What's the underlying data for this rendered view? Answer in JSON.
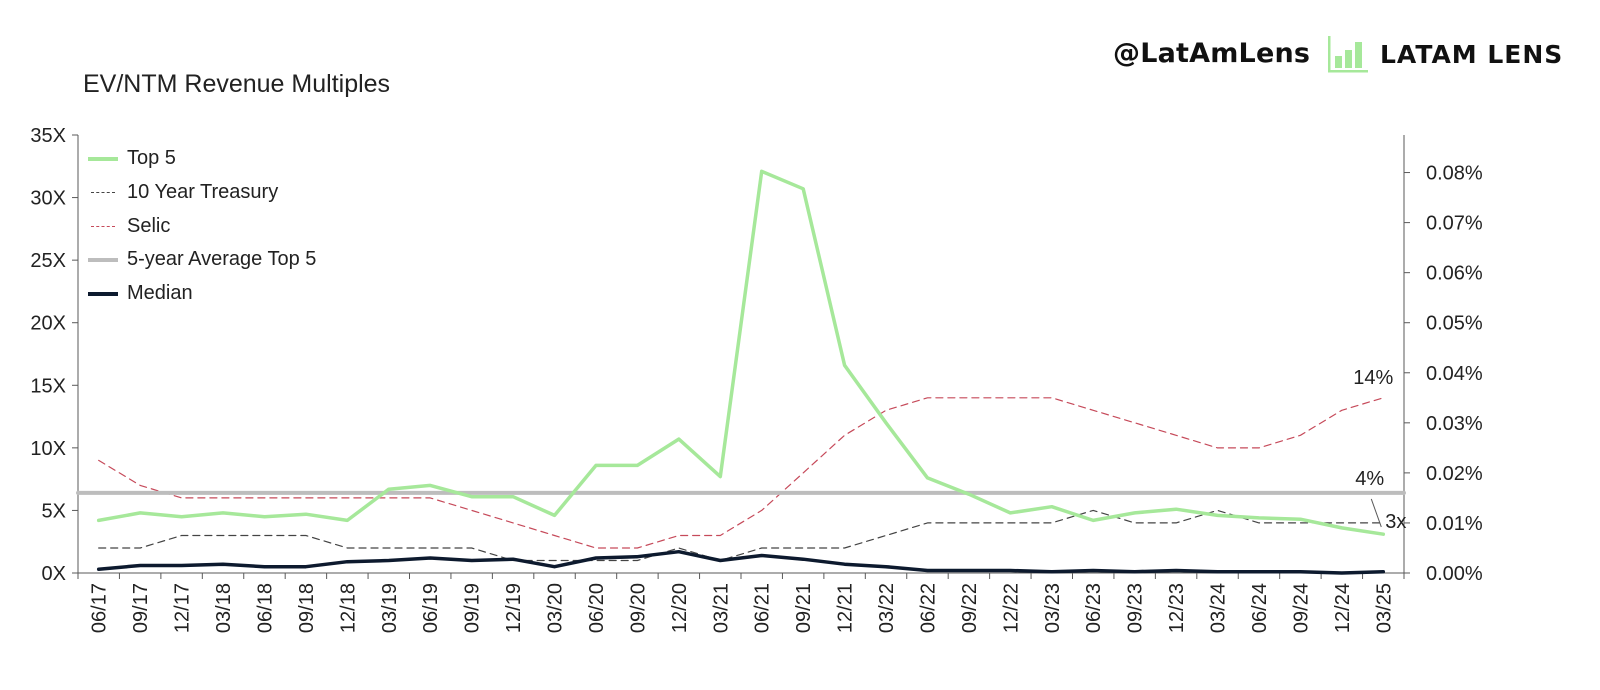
{
  "brand": {
    "handle": "@LatAmLens",
    "name": "LATAM LENS",
    "accent": "#a6e89a"
  },
  "chart_data": {
    "type": "line",
    "title": "EV/NTM Revenue Multiples",
    "categories": [
      "06/17",
      "09/17",
      "12/17",
      "03/18",
      "06/18",
      "09/18",
      "12/18",
      "03/19",
      "06/19",
      "09/19",
      "12/19",
      "03/20",
      "06/20",
      "09/20",
      "12/20",
      "03/21",
      "06/21",
      "09/21",
      "12/21",
      "03/22",
      "06/22",
      "09/22",
      "12/22",
      "03/23",
      "06/23",
      "09/23",
      "12/23",
      "03/24",
      "06/24",
      "09/24",
      "12/24",
      "03/25"
    ],
    "y_left": {
      "ylim": [
        0,
        35
      ],
      "ticks": [
        0,
        5,
        10,
        15,
        20,
        25,
        30,
        35
      ],
      "tick_labels": [
        "0X",
        "5X",
        "10X",
        "15X",
        "20X",
        "25X",
        "30X",
        "35X"
      ]
    },
    "y_right": {
      "ylim": [
        0,
        0.0875
      ],
      "ticks": [
        0,
        0.01,
        0.02,
        0.03,
        0.04,
        0.05,
        0.06,
        0.07,
        0.08
      ],
      "tick_labels": [
        "0.00%",
        "0.01%",
        "0.02%",
        "0.03%",
        "0.04%",
        "0.05%",
        "0.06%",
        "0.07%",
        "0.08%"
      ]
    },
    "series": [
      {
        "name": "Top 5",
        "axis": "left",
        "color": "#a6e89a",
        "style": "solid",
        "width": 3.5,
        "values": [
          4.2,
          4.8,
          4.5,
          4.8,
          4.5,
          4.7,
          4.2,
          6.7,
          7.0,
          6.1,
          6.1,
          4.6,
          8.6,
          8.6,
          10.7,
          7.7,
          32.1,
          30.7,
          16.6,
          12.0,
          7.6,
          6.3,
          4.8,
          5.3,
          4.2,
          4.8,
          5.1,
          4.6,
          4.4,
          4.3,
          3.6,
          3.1
        ]
      },
      {
        "name": "10 Year Treasury",
        "axis": "left",
        "color": "#444444",
        "style": "dashed",
        "width": 1.2,
        "values": [
          2.0,
          2.0,
          3.0,
          3.0,
          3.0,
          3.0,
          2.0,
          2.0,
          2.0,
          2.0,
          1.0,
          1.0,
          1.0,
          1.0,
          2.0,
          1.0,
          2.0,
          2.0,
          2.0,
          3.0,
          4.0,
          4.0,
          4.0,
          4.0,
          5.0,
          4.0,
          4.0,
          5.0,
          4.0,
          4.0,
          4.0,
          4.0
        ]
      },
      {
        "name": "Selic",
        "axis": "left",
        "color": "#c64a5a",
        "style": "dashed",
        "width": 1.2,
        "values": [
          9.0,
          7.0,
          6.0,
          6.0,
          6.0,
          6.0,
          6.0,
          6.0,
          6.0,
          5.0,
          4.0,
          3.0,
          2.0,
          2.0,
          3.0,
          3.0,
          5.0,
          8.0,
          11.0,
          13.0,
          14.0,
          14.0,
          14.0,
          14.0,
          13.0,
          12.0,
          11.0,
          10.0,
          10.0,
          11.0,
          13.0,
          14.0
        ]
      },
      {
        "name": "5-year Average Top 5",
        "axis": "left",
        "color": "#bdbdbd",
        "style": "solid",
        "width": 4,
        "values": [
          6.4,
          6.4,
          6.4,
          6.4,
          6.4,
          6.4,
          6.4,
          6.4,
          6.4,
          6.4,
          6.4,
          6.4,
          6.4,
          6.4,
          6.4,
          6.4,
          6.4,
          6.4,
          6.4,
          6.4,
          6.4,
          6.4,
          6.4,
          6.4,
          6.4,
          6.4,
          6.4,
          6.4,
          6.4,
          6.4,
          6.4,
          6.4
        ]
      },
      {
        "name": "Median",
        "axis": "left",
        "color": "#0d1a2e",
        "style": "solid",
        "width": 3.5,
        "values": [
          0.3,
          0.6,
          0.6,
          0.7,
          0.5,
          0.5,
          0.9,
          1.0,
          1.2,
          1.0,
          1.1,
          0.5,
          1.2,
          1.3,
          1.7,
          1.0,
          1.4,
          1.1,
          0.7,
          0.5,
          0.2,
          0.2,
          0.2,
          0.1,
          0.2,
          0.1,
          0.2,
          0.1,
          0.1,
          0.1,
          0.0,
          0.1
        ]
      }
    ],
    "annotations": [
      {
        "text": "14%",
        "series": "Selic"
      },
      {
        "text": "4%",
        "series": "10 Year Treasury"
      },
      {
        "text": "3x",
        "series": "Top 5"
      }
    ],
    "legend": "top-left",
    "grid": false
  }
}
